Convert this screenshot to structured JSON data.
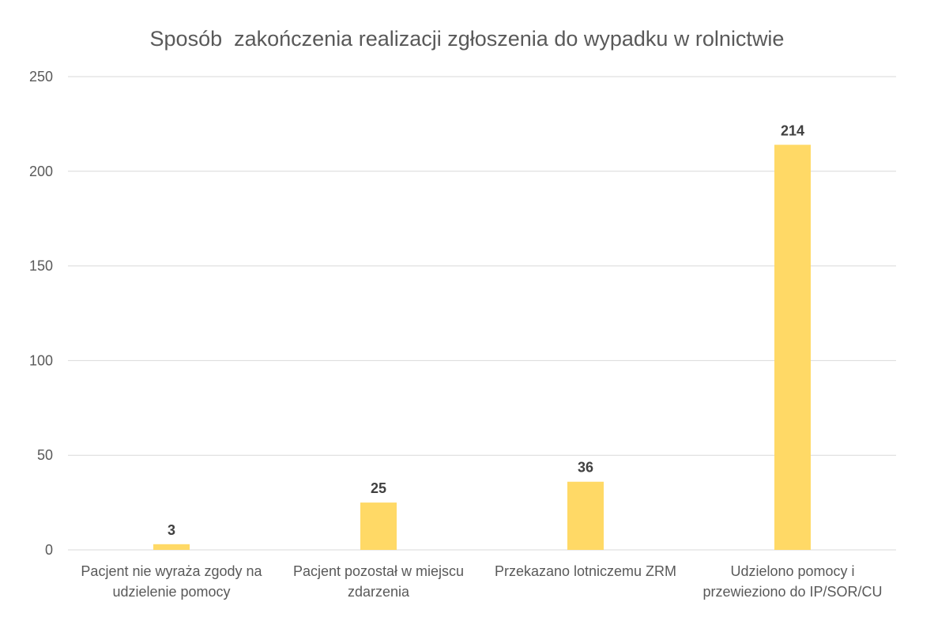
{
  "chart_data": {
    "type": "bar",
    "title": "Sposób  zakończenia realizacji zgłoszenia do wypadku w rolnictwie",
    "xlabel": "",
    "ylabel": "",
    "categories": [
      [
        "Pacjent nie wyraża zgody na",
        "udzielenie pomocy"
      ],
      [
        "Pacjent pozostał w miejscu",
        "zdarzenia"
      ],
      [
        "Przekazano lotniczemu ZRM"
      ],
      [
        "Udzielono pomocy i",
        "przewieziono do IP/SOR/CU"
      ]
    ],
    "values": [
      3,
      25,
      36,
      214
    ],
    "data_labels": [
      "3",
      "25",
      "36",
      "214"
    ],
    "ylim": [
      0,
      250
    ],
    "yticks": [
      0,
      50,
      100,
      150,
      200,
      250
    ],
    "grid": true,
    "legend": "none",
    "colors": {
      "bar": "#FFD966",
      "grid": "#D9D9D9",
      "axis": "#D9D9D9",
      "text": "#595959",
      "data_label": "#404040"
    }
  }
}
